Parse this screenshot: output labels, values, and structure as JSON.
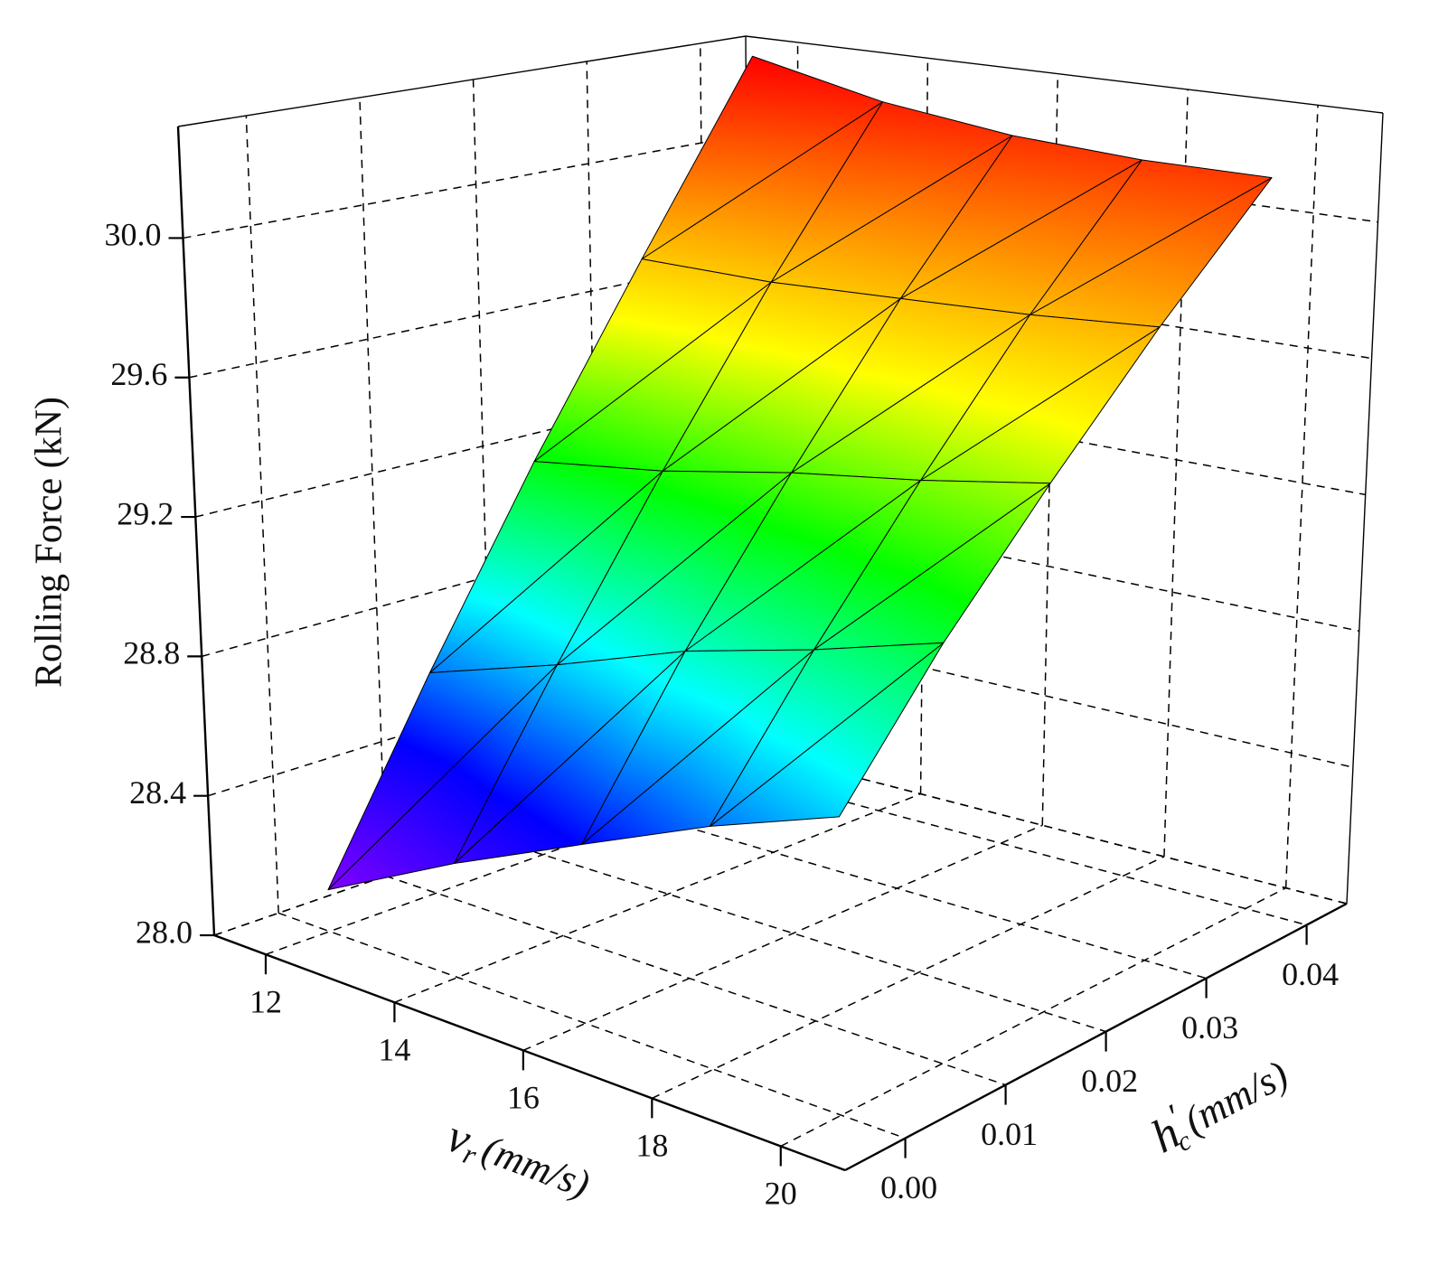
{
  "chart_data": {
    "type": "surface",
    "zlabel": "Rolling Force (kN)",
    "xlabel": {
      "main": "v",
      "subscript": "r",
      "unit": "(mm/s)"
    },
    "ylabel": {
      "main": "h",
      "prime": "′",
      "subscript": "c",
      "unit": "(mm/s)"
    },
    "x": [
      12,
      14,
      16,
      18,
      20
    ],
    "y": [
      0,
      0.01,
      0.02,
      0.03,
      0.04
    ],
    "z": [
      [
        28.12,
        28.32,
        28.49,
        28.65,
        28.78
      ],
      [
        28.65,
        28.78,
        28.92,
        29.02,
        29.13
      ],
      [
        29.19,
        29.25,
        29.33,
        29.39,
        29.46
      ],
      [
        29.73,
        29.73,
        29.75,
        29.77,
        29.8
      ],
      [
        30.3,
        30.21,
        30.16,
        30.14,
        30.14
      ]
    ],
    "xlim": [
      11.2,
      21
    ],
    "ylim": [
      -0.006,
      0.044
    ],
    "zlim": [
      28,
      30.32
    ],
    "xticks": [
      12,
      14,
      16,
      18,
      20
    ],
    "yticks": [
      {
        "value": 0,
        "label": "0.00"
      },
      0.01,
      0.02,
      0.03,
      0.04
    ],
    "zticks": [
      {
        "value": 28,
        "label": "28.0"
      },
      28.4,
      28.8,
      29.2,
      29.6,
      {
        "value": 30,
        "label": "30.0"
      }
    ],
    "grid": true,
    "colorscale": [
      "#8000ff",
      "#0000ff",
      "#00ffff",
      "#00ff00",
      "#ffff00",
      "#ff8000",
      "#ff0000"
    ]
  }
}
